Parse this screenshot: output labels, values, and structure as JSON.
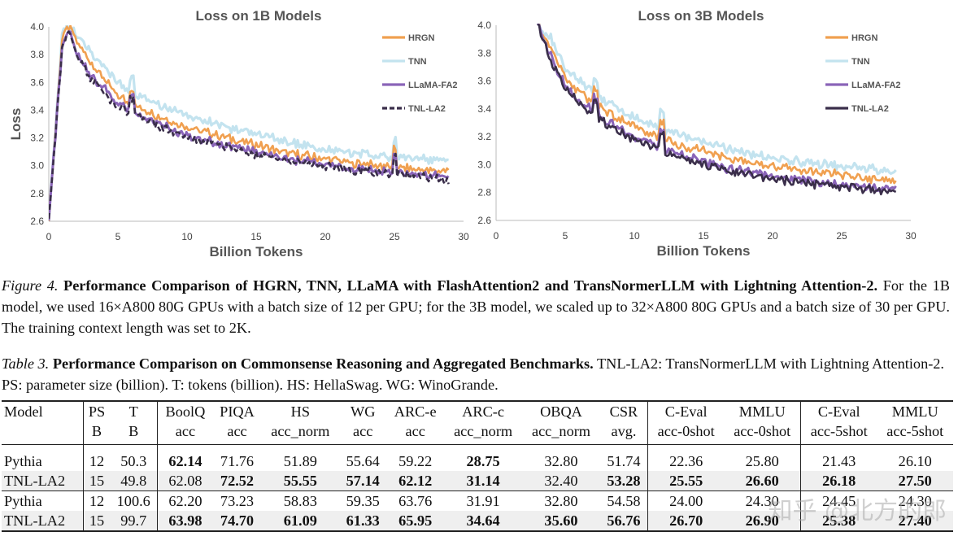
{
  "charts": [
    {
      "title": "Loss on 1B Models",
      "xlabel": "Billion Tokens",
      "ylabel": "Loss",
      "xlim": [
        0,
        30
      ],
      "ylim": [
        2.6,
        4.0
      ],
      "xticks": [
        0,
        5,
        10,
        15,
        20,
        25,
        30
      ],
      "yticks": [
        "4.0",
        "3.8",
        "3.6",
        "3.4",
        "3.2",
        "3.0",
        "2.8",
        "2.6"
      ],
      "legend": [
        {
          "name": "HRGN",
          "color": "#f0a050",
          "dash": false
        },
        {
          "name": "TNN",
          "color": "#c3e3ef",
          "dash": false
        },
        {
          "name": "LLaMA-FA2",
          "color": "#8a64b8",
          "dash": false
        },
        {
          "name": "TNL-LA2",
          "color": "#3a2e4a",
          "dash": true
        }
      ]
    },
    {
      "title": "Loss on 3B Models",
      "xlabel": "Billion Tokens",
      "ylabel": "",
      "xlim": [
        0,
        30
      ],
      "ylim": [
        2.6,
        4.0
      ],
      "xticks": [
        0,
        5,
        10,
        15,
        20,
        25,
        30
      ],
      "yticks": [
        "4.0",
        "3.8",
        "3.6",
        "3.4",
        "3.2",
        "3.0",
        "2.8",
        "2.6"
      ],
      "legend": [
        {
          "name": "HRGN",
          "color": "#f0a050",
          "dash": false
        },
        {
          "name": "TNN",
          "color": "#c3e3ef",
          "dash": false
        },
        {
          "name": "LLaMA-FA2",
          "color": "#8a64b8",
          "dash": false
        },
        {
          "name": "TNL-LA2",
          "color": "#3a2e4a",
          "dash": false
        }
      ]
    }
  ],
  "chart_data": [
    {
      "type": "line",
      "title": "Loss on 1B Models",
      "xlabel": "Billion Tokens",
      "ylabel": "Loss",
      "xlim": [
        0,
        30
      ],
      "ylim": [
        2.6,
        4.0
      ],
      "x": [
        0,
        1.0,
        1.5,
        2,
        3,
        4,
        5,
        6,
        7,
        8,
        10,
        12,
        14,
        15,
        16,
        18,
        20,
        22,
        24,
        25,
        26,
        27,
        28,
        29
      ],
      "series": [
        {
          "name": "HRGN",
          "values": [
            2.6,
            3.95,
            4.0,
            3.9,
            3.75,
            3.62,
            3.5,
            3.45,
            3.4,
            3.35,
            3.28,
            3.22,
            3.17,
            3.15,
            3.12,
            3.08,
            3.05,
            3.02,
            3.0,
            2.99,
            2.98,
            2.97,
            2.96,
            2.97
          ]
        },
        {
          "name": "TNN",
          "values": [
            2.6,
            3.98,
            4.0,
            3.95,
            3.82,
            3.7,
            3.6,
            3.53,
            3.48,
            3.43,
            3.36,
            3.3,
            3.25,
            3.22,
            3.2,
            3.16,
            3.12,
            3.09,
            3.07,
            3.06,
            3.05,
            3.05,
            3.04,
            3.05
          ]
        },
        {
          "name": "LLaMA-FA2",
          "values": [
            2.6,
            3.9,
            3.98,
            3.82,
            3.66,
            3.55,
            3.45,
            3.4,
            3.35,
            3.3,
            3.22,
            3.16,
            3.12,
            3.1,
            3.07,
            3.04,
            3.01,
            2.98,
            2.96,
            2.95,
            2.94,
            2.93,
            2.93,
            2.93
          ]
        },
        {
          "name": "TNL-LA2",
          "values": [
            2.6,
            3.88,
            3.97,
            3.8,
            3.64,
            3.53,
            3.43,
            3.38,
            3.33,
            3.28,
            3.21,
            3.15,
            3.1,
            3.08,
            3.06,
            3.03,
            3.0,
            2.97,
            2.95,
            2.94,
            2.93,
            2.92,
            2.92,
            2.88
          ]
        }
      ]
    },
    {
      "type": "line",
      "title": "Loss on 3B Models",
      "xlabel": "Billion Tokens",
      "ylabel": "",
      "xlim": [
        0,
        30
      ],
      "ylim": [
        2.6,
        4.0
      ],
      "x": [
        3,
        4,
        5,
        6,
        7,
        8,
        10,
        12,
        14,
        16,
        18,
        20,
        22,
        24,
        25,
        26,
        27,
        28,
        29
      ],
      "series": [
        {
          "name": "HRGN",
          "values": [
            4.0,
            3.82,
            3.62,
            3.52,
            3.45,
            3.38,
            3.27,
            3.19,
            3.12,
            3.07,
            3.02,
            2.99,
            2.96,
            2.94,
            2.93,
            2.91,
            2.9,
            2.89,
            2.88
          ]
        },
        {
          "name": "TNN",
          "values": [
            4.0,
            3.9,
            3.7,
            3.6,
            3.52,
            3.45,
            3.34,
            3.26,
            3.19,
            3.13,
            3.08,
            3.05,
            3.02,
            3.0,
            2.99,
            2.98,
            2.97,
            2.96,
            2.95
          ]
        },
        {
          "name": "LLaMA-FA2",
          "values": [
            4.0,
            3.76,
            3.57,
            3.46,
            3.38,
            3.32,
            3.2,
            3.12,
            3.05,
            2.99,
            2.95,
            2.92,
            2.89,
            2.87,
            2.86,
            2.85,
            2.84,
            2.83,
            2.82
          ]
        },
        {
          "name": "TNL-LA2",
          "values": [
            4.0,
            3.74,
            3.55,
            3.44,
            3.36,
            3.3,
            3.18,
            3.1,
            3.03,
            2.97,
            2.93,
            2.9,
            2.87,
            2.85,
            2.84,
            2.83,
            2.82,
            2.81,
            2.8
          ]
        }
      ]
    }
  ],
  "figure_caption": {
    "label": "Figure 4.",
    "bold": "Performance Comparison of HGRN, TNN, LLaMA with FlashAttention2 and TransNormerLLM with Lightning Attention-2.",
    "text": "For the 1B model, we used 16×A800 80G GPUs with a batch size of 12 per GPU; for the 3B model, we scaled up to 32×A800 80G GPUs and a batch size of 30 per GPU. The training context length was set to 2K."
  },
  "table_caption": {
    "label": "Table 3.",
    "bold": "Performance Comparison on Commonsense Reasoning and Aggregated Benchmarks.",
    "text": "TNL-LA2: TransNormerLLM with Lightning Attention-2. PS: parameter size (billion). T: tokens (billion). HS: HellaSwag. WG: WinoGrande."
  },
  "table": {
    "headers": [
      "Model",
      "PS",
      "T",
      "BoolQ",
      "PIQA",
      "HS",
      "WG",
      "ARC-e",
      "ARC-c",
      "OBQA",
      "CSR",
      "C-Eval",
      "MMLU",
      "C-Eval",
      "MMLU"
    ],
    "subheaders": [
      "",
      "B",
      "B",
      "acc",
      "acc",
      "acc_norm",
      "acc",
      "acc",
      "acc_norm",
      "acc_norm",
      "avg.",
      "acc-0shot",
      "acc-0shot",
      "acc-5shot",
      "acc-5shot"
    ],
    "rows": [
      {
        "cells": [
          "Pythia",
          "12",
          "50.3",
          "62.14",
          "71.76",
          "51.89",
          "55.64",
          "59.22",
          "28.75",
          "32.80",
          "51.74",
          "22.36",
          "25.80",
          "21.43",
          "26.10"
        ],
        "bold": [
          3,
          8
        ]
      },
      {
        "cells": [
          "TNL-LA2",
          "15",
          "49.8",
          "62.08",
          "72.52",
          "55.55",
          "57.14",
          "62.12",
          "31.14",
          "32.40",
          "53.28",
          "25.55",
          "26.60",
          "26.18",
          "27.50"
        ],
        "bold": [
          4,
          5,
          6,
          7,
          8,
          10,
          11,
          12,
          13,
          14
        ]
      },
      {
        "cells": [
          "Pythia",
          "12",
          "100.6",
          "62.20",
          "73.23",
          "58.83",
          "59.35",
          "63.76",
          "31.91",
          "32.80",
          "54.58",
          "24.00",
          "24.30",
          "24.45",
          "24.30"
        ],
        "bold": []
      },
      {
        "cells": [
          "TNL-LA2",
          "15",
          "99.7",
          "63.98",
          "74.70",
          "61.09",
          "61.33",
          "65.95",
          "34.64",
          "35.60",
          "56.76",
          "26.70",
          "26.90",
          "25.38",
          "27.40"
        ],
        "bold": [
          3,
          4,
          5,
          6,
          7,
          8,
          9,
          10,
          11,
          12,
          13,
          14
        ]
      }
    ]
  },
  "watermark": "知乎 @北方的郎"
}
